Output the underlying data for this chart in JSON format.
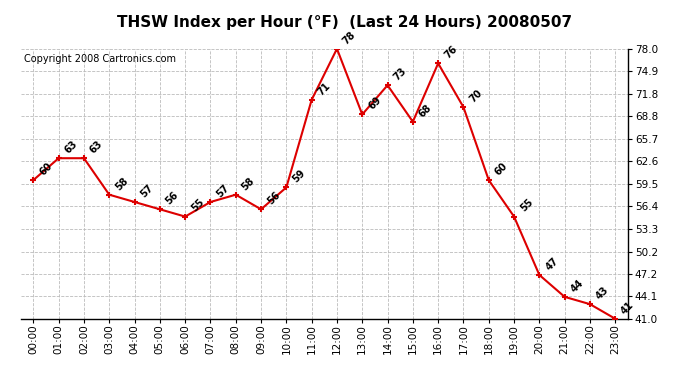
{
  "title": "THSW Index per Hour (°F)  (Last 24 Hours) 20080507",
  "copyright": "Copyright 2008 Cartronics.com",
  "hours": [
    "00:00",
    "01:00",
    "02:00",
    "03:00",
    "04:00",
    "05:00",
    "06:00",
    "07:00",
    "08:00",
    "09:00",
    "10:00",
    "11:00",
    "12:00",
    "13:00",
    "14:00",
    "15:00",
    "16:00",
    "17:00",
    "18:00",
    "19:00",
    "20:00",
    "21:00",
    "22:00",
    "23:00"
  ],
  "values": [
    60,
    63,
    63,
    58,
    57,
    56,
    55,
    57,
    58,
    56,
    59,
    71,
    78,
    69,
    73,
    68,
    76,
    70,
    60,
    55,
    47,
    44,
    43,
    41
  ],
  "ylim_min": 41.0,
  "ylim_max": 78.0,
  "yticks": [
    41.0,
    44.1,
    47.2,
    50.2,
    53.3,
    56.4,
    59.5,
    62.6,
    65.7,
    68.8,
    71.8,
    74.9,
    78.0
  ],
  "line_color": "#dd0000",
  "marker_color": "#dd0000",
  "bg_color": "#ffffff",
  "plot_bg_color": "#ffffff",
  "grid_color": "#bbbbbb",
  "title_fontsize": 11,
  "tick_fontsize": 7.5,
  "annot_fontsize": 7,
  "copyright_fontsize": 7
}
